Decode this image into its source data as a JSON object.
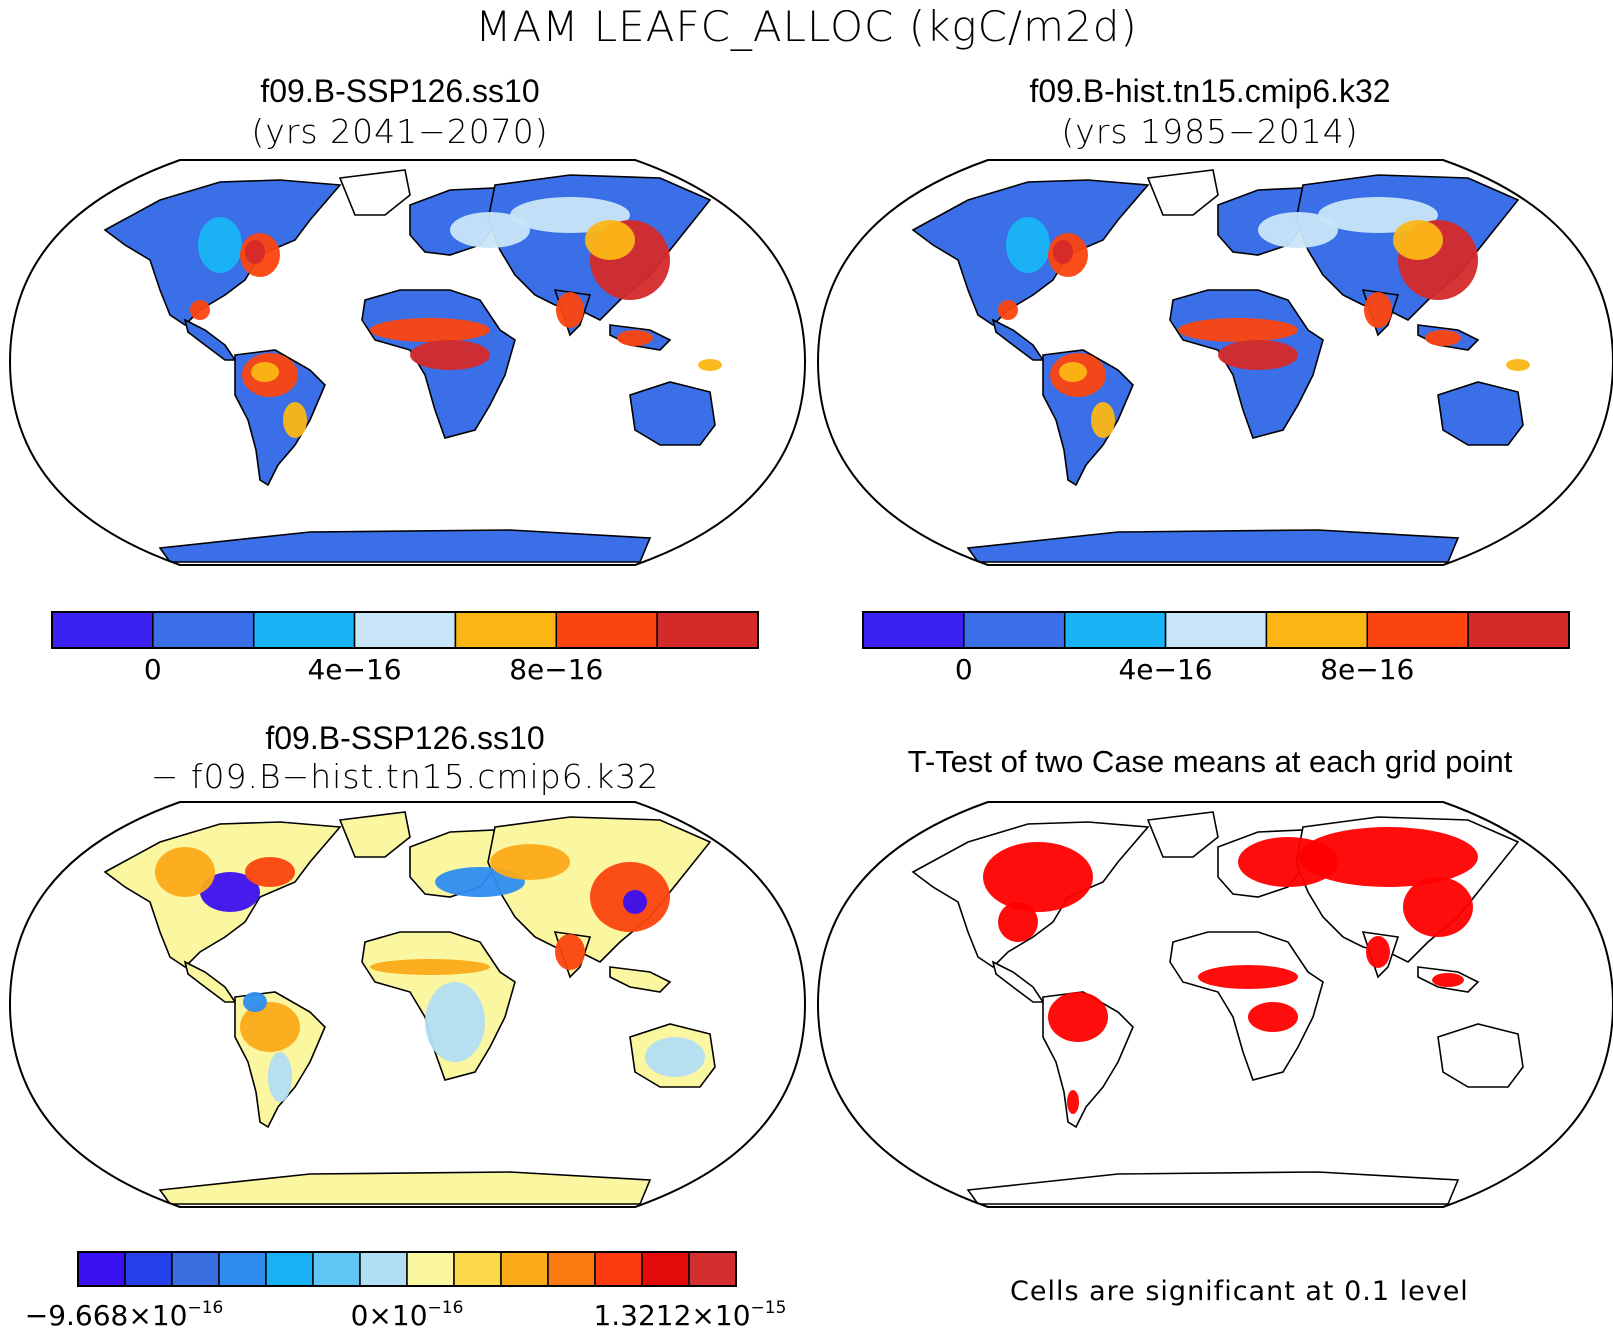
{
  "figure": {
    "title": "MAM LEAFC_ALLOC (kgC/m2d)"
  },
  "panels": [
    {
      "id": "case1",
      "title": "f09.B-SSP126.ss10",
      "subtitle": "(yrs 2041−2070)",
      "colorbar": {
        "colors": [
          "#3b22f0",
          "#3a6fe8",
          "#18b4f6",
          "#c8e6f8",
          "#fbb614",
          "#fb440f",
          "#d52a2a"
        ],
        "tick_labels": [
          "0",
          "4e−16",
          "8e−16"
        ]
      }
    },
    {
      "id": "case2",
      "title": "f09.B-hist.tn15.cmip6.k32",
      "subtitle": "(yrs 1985−2014)",
      "colorbar": {
        "colors": [
          "#3b22f0",
          "#3a6fe8",
          "#18b4f6",
          "#c8e6f8",
          "#fbb614",
          "#fb440f",
          "#d52a2a"
        ],
        "tick_labels": [
          "0",
          "4e−16",
          "8e−16"
        ]
      }
    },
    {
      "id": "diff",
      "title": "f09.B-SSP126.ss10",
      "subtitle": "− f09.B−hist.tn15.cmip6.k32",
      "colorbar": {
        "colors": [
          "#3b10f0",
          "#2440e8",
          "#3a6ee0",
          "#2e8cf0",
          "#18b0f6",
          "#60c4f4",
          "#b2def4",
          "#fbf6a0",
          "#fbd84a",
          "#fbaa18",
          "#fb7a12",
          "#fb3a10",
          "#e40b0b",
          "#d32f2f"
        ],
        "tick_labels": [
          {
            "base": "−9.668×10",
            "exp": "−16"
          },
          {
            "base": "0×10",
            "exp": "−16"
          },
          {
            "base": "1.3212×10",
            "exp": "−15"
          }
        ]
      }
    },
    {
      "id": "ttest",
      "title": "T-Test of two Case means at each grid point",
      "note": "Cells are significant at 0.1 level",
      "significant_color": "#ff0000"
    }
  ],
  "map_fill_colors": {
    "case": {
      "base": "#3a6fe8",
      "light": "#c8e6f8",
      "mid": "#18b4f6",
      "warm": "#fbb614",
      "hot": "#fb440f",
      "max": "#d52a2a"
    },
    "diff": {
      "base": "#fbf6a0",
      "light": "#b2def4",
      "warm": "#fbaa18",
      "hot": "#fb440f",
      "cool": "#2e8cf0",
      "cold": "#3b10f0"
    }
  }
}
